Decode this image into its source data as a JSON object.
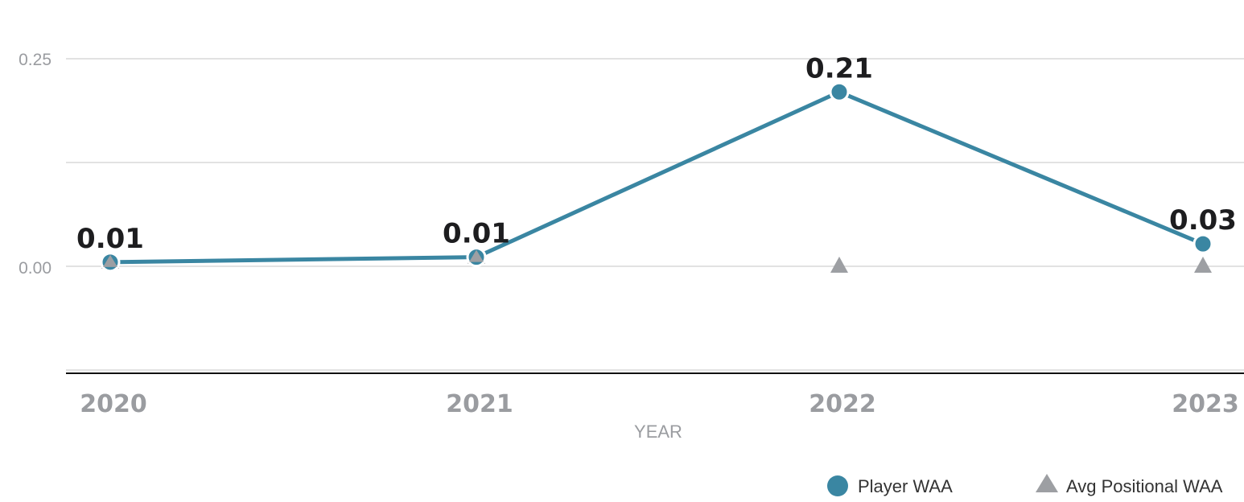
{
  "chart_data": {
    "type": "line",
    "categories": [
      "2020",
      "2021",
      "2022",
      "2023"
    ],
    "series": [
      {
        "name": "Player WAA",
        "marker": "circle",
        "color": "#3a86a2",
        "values": [
          0.005,
          0.011,
          0.21,
          0.027
        ],
        "labels": [
          "0.01",
          "0.01",
          "0.21",
          "0.03"
        ]
      },
      {
        "name": "Avg Positional WAA",
        "marker": "triangle",
        "color": "#9d9fa3",
        "values": [
          0.005,
          0.011,
          0.0,
          0.0
        ]
      }
    ],
    "xlabel": "YEAR",
    "ylabel": "",
    "ylim": [
      -0.125,
      0.25
    ],
    "yticks": [
      "0.25",
      "0.00"
    ],
    "grid": true,
    "legend": "bottom-right"
  }
}
